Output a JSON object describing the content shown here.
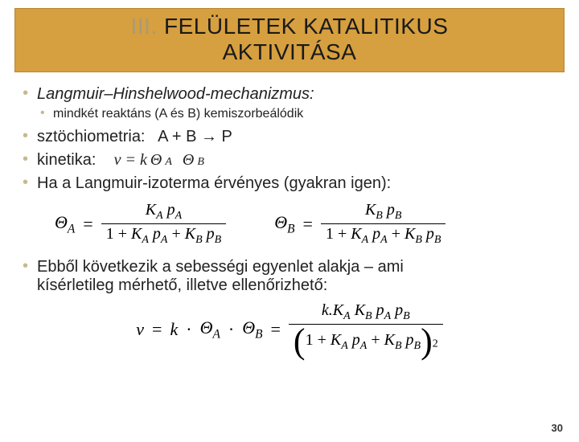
{
  "title": {
    "roman": "III.",
    "rest_line1": " FELÜLETEK KATALITIKUS",
    "line2": "AKTIVITÁSA"
  },
  "bullets": {
    "b1": "Langmuir–Hinshelwood-mechanizmus:",
    "b1_sub": "mindkét reaktáns (A és B) kemiszorbeálódik",
    "b2_label": "sztöchiometria:",
    "b2_eq": "A + B → P",
    "b3_label": "kinetika:",
    "b3_eq_prefix": "v = k ",
    "b3_eq_thetaA": "Θ",
    "b3_eq_A": "A",
    "b3_eq_thetaB": "Θ",
    "b3_eq_B": "B",
    "b4": "Ha a Langmuir-izoterma érvényes (gyakran igen):",
    "b5a": "Ebből következik a sebességi egyenlet alakja – ami",
    "b5b": "kísérletileg mérhető, illetve ellenőrizhető:"
  },
  "eq_pair": {
    "lhsA": "Θ",
    "subA": "A",
    "numA_1": "K",
    "numA_1s": "A",
    "numA_2": "p",
    "numA_2s": "A",
    "denA_pre": "1 + ",
    "denA_t1a": "K",
    "denA_t1s": "A",
    "denA_t1b": "p",
    "denA_t1bs": "A",
    "denA_plus": " + ",
    "denA_t2a": "K",
    "denA_t2s": "B",
    "denA_t2b": "p",
    "denA_t2bs": "B",
    "lhsB": "Θ",
    "subB": "B",
    "numB_1": "K",
    "numB_1s": "B",
    "numB_2": "p",
    "numB_2s": "B"
  },
  "eq_big": {
    "lhs_v": "v",
    "eq": " = ",
    "k": "k",
    "dot": " · ",
    "thA": "Θ",
    "thAs": "A",
    "thB": "Θ",
    "thBs": "B",
    "num_k": "k.K",
    "num_Ka_s": "A",
    "num_Kb": "K",
    "num_Kb_s": "B",
    "num_pa": "p",
    "num_pa_s": "A",
    "num_pb": "p",
    "num_pb_s": "B",
    "den_pre": "1 + ",
    "exp": "2"
  },
  "page": "30",
  "colors": {
    "title_bg": "#d69f3f",
    "title_border": "#b8862f",
    "bullet_marker": "#c7b98f",
    "text": "#222222",
    "roman": "#a89a7a"
  },
  "typography": {
    "title_fontsize": 28,
    "body_fontsize": 20,
    "sub_fontsize": 16,
    "formula_font": "Times New Roman"
  }
}
